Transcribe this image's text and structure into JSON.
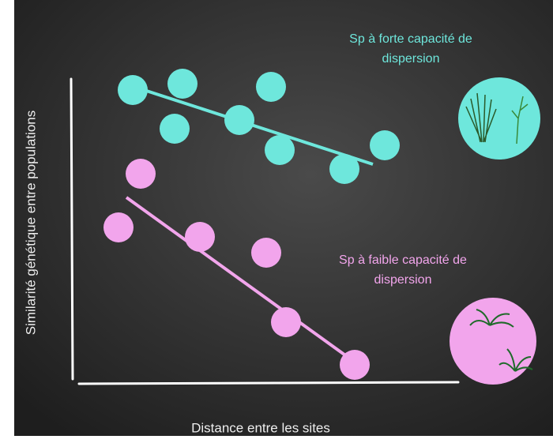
{
  "axes": {
    "y_label": "Similarité génétique entre populations",
    "x_label": "Distance entre les sites"
  },
  "groups": [
    {
      "label_lines": [
        "Sp à forte capacité de",
        "dispersion"
      ]
    },
    {
      "label_lines": [
        "Sp à faible capacité de",
        "dispersion"
      ]
    }
  ]
}
